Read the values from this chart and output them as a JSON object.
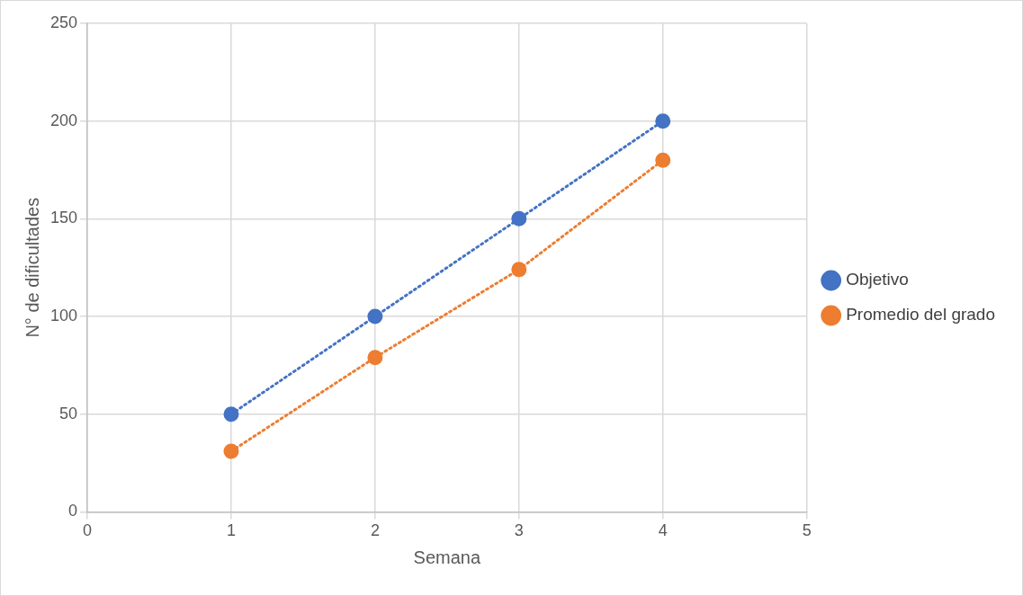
{
  "chart_data": {
    "type": "line",
    "xlabel": "Semana",
    "ylabel": "N° de dificultades",
    "x": [
      1,
      2,
      3,
      4
    ],
    "series": [
      {
        "name": "Objetivo",
        "color": "#4472c4",
        "values": [
          50,
          100,
          150,
          200
        ]
      },
      {
        "name": "Promedio del grado",
        "color": "#ed7d31",
        "values": [
          31,
          79,
          124,
          180
        ]
      }
    ],
    "xlim": [
      0,
      5
    ],
    "xticks": [
      0,
      1,
      2,
      3,
      4,
      5
    ],
    "ylim": [
      0,
      250
    ],
    "yticks": [
      0,
      50,
      100,
      150,
      200,
      250
    ],
    "marker": "circle",
    "line_style": "dotted",
    "grid": true,
    "legend": "right"
  }
}
